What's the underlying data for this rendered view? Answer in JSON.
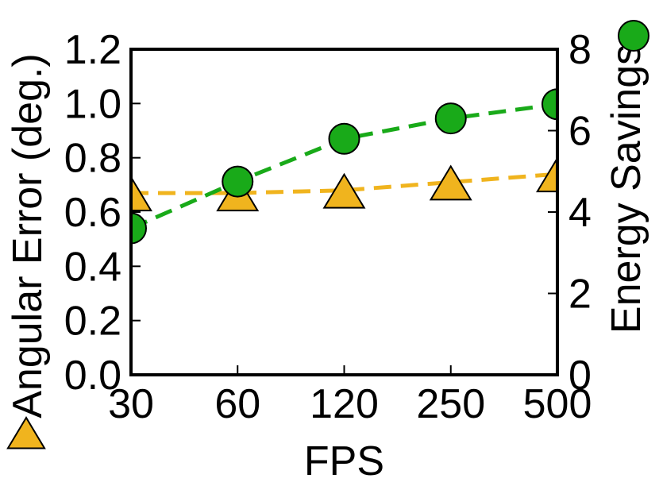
{
  "chart_data": {
    "type": "line",
    "xlabel": "FPS",
    "categories": [
      "30",
      "60",
      "120",
      "250",
      "500"
    ],
    "left_axis": {
      "label": "Angular Error (deg.)",
      "ylim": [
        0,
        1.2
      ],
      "ticks": [
        "0.0",
        "0.2",
        "0.4",
        "0.6",
        "0.8",
        "1.0",
        "1.2"
      ]
    },
    "right_axis": {
      "label": "Energy Savings",
      "ylim": [
        0,
        8
      ],
      "ticks": [
        "0",
        "2",
        "4",
        "6",
        "8"
      ]
    },
    "series": [
      {
        "axis": "left",
        "marker": "triangle",
        "color": "#F0B41E",
        "values": [
          0.67,
          0.67,
          0.68,
          0.71,
          0.74
        ]
      },
      {
        "axis": "right",
        "marker": "circle",
        "color": "#19AA19",
        "values": [
          3.6,
          4.75,
          5.8,
          6.3,
          6.65
        ]
      }
    ],
    "grid": false
  }
}
